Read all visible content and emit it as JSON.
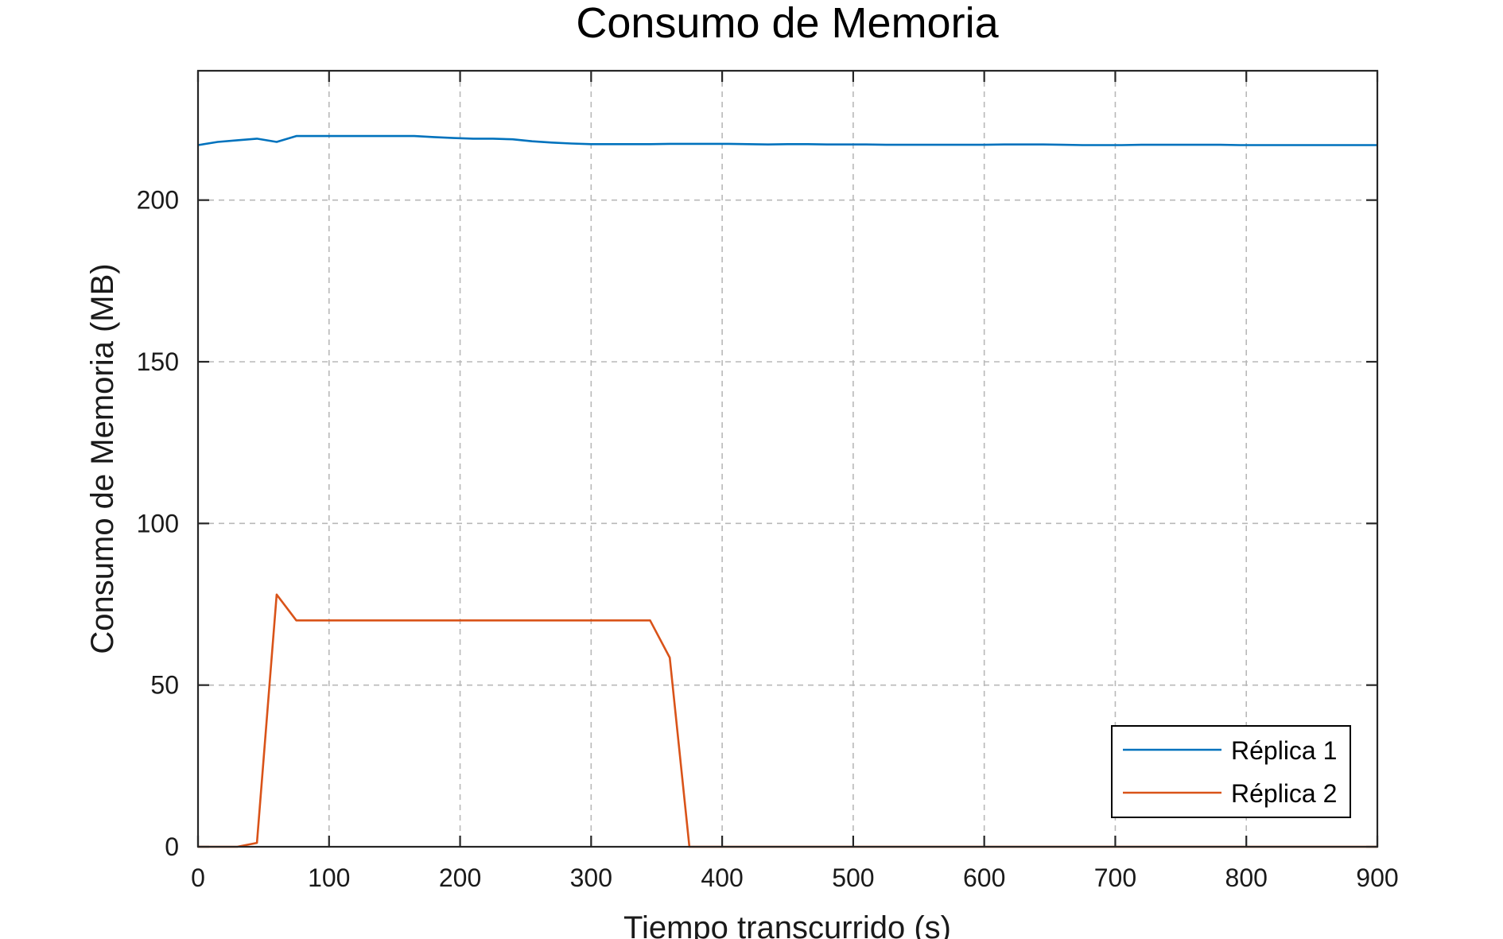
{
  "chart_data": {
    "type": "line",
    "title": "Consumo de Memoria",
    "xlabel": "Tiempo transcurrido (s)",
    "ylabel": "Consumo de Memoria (MB)",
    "xlim": [
      0,
      900
    ],
    "ylim": [
      0,
      240
    ],
    "xticks": [
      0,
      100,
      200,
      300,
      400,
      500,
      600,
      700,
      800,
      900
    ],
    "yticks": [
      0,
      50,
      100,
      150,
      200
    ],
    "grid": true,
    "legend": "bottom-right",
    "series": [
      {
        "name": "Réplica 1",
        "color": "#0072BD",
        "x": [
          0,
          15,
          30,
          45,
          60,
          75,
          90,
          105,
          120,
          135,
          150,
          165,
          180,
          195,
          210,
          225,
          240,
          255,
          270,
          285,
          300,
          315,
          330,
          345,
          360,
          375,
          390,
          405,
          420,
          435,
          450,
          465,
          480,
          495,
          510,
          525,
          540,
          555,
          570,
          585,
          600,
          615,
          630,
          645,
          660,
          675,
          690,
          705,
          720,
          735,
          750,
          765,
          780,
          795,
          810,
          825,
          840,
          855,
          870,
          885,
          900
        ],
        "y": [
          217,
          218,
          218.5,
          219,
          218,
          219.8,
          219.8,
          219.8,
          219.8,
          219.8,
          219.8,
          219.8,
          219.5,
          219.2,
          219,
          219,
          218.8,
          218.2,
          217.8,
          217.5,
          217.3,
          217.3,
          217.3,
          217.3,
          217.4,
          217.4,
          217.4,
          217.4,
          217.3,
          217.2,
          217.3,
          217.3,
          217.2,
          217.2,
          217.2,
          217.1,
          217.1,
          217.1,
          217.1,
          217.1,
          217.1,
          217.2,
          217.2,
          217.2,
          217.1,
          217,
          217,
          217,
          217.1,
          217.1,
          217.1,
          217.1,
          217.1,
          217,
          217,
          217,
          217,
          217,
          217,
          217,
          217
        ]
      },
      {
        "name": "Réplica 2",
        "color": "#D95319",
        "x": [
          0,
          15,
          30,
          45,
          60,
          75,
          90,
          105,
          120,
          135,
          150,
          165,
          180,
          195,
          210,
          225,
          240,
          255,
          270,
          285,
          300,
          315,
          330,
          345,
          360,
          375,
          390,
          405,
          420,
          435,
          450,
          465,
          480,
          495,
          510,
          525,
          540,
          555,
          570,
          585,
          600,
          615,
          630,
          645,
          660,
          675,
          690,
          705,
          720,
          735,
          750,
          765,
          780,
          795,
          810,
          825,
          840,
          855,
          870,
          885,
          900
        ],
        "y": [
          0,
          0,
          0,
          1.2,
          78,
          70,
          70,
          70,
          70,
          70,
          70,
          70,
          70,
          70,
          70,
          70,
          70,
          70,
          70,
          70,
          70,
          70,
          70,
          70,
          58.5,
          0,
          0,
          0,
          0,
          0,
          0,
          0,
          0,
          0,
          0,
          0,
          0,
          0,
          0,
          0,
          0,
          0,
          0,
          0,
          0,
          0,
          0,
          0,
          0,
          0,
          0,
          0,
          0,
          0,
          0,
          0,
          0,
          0,
          0,
          0,
          0
        ]
      }
    ]
  }
}
